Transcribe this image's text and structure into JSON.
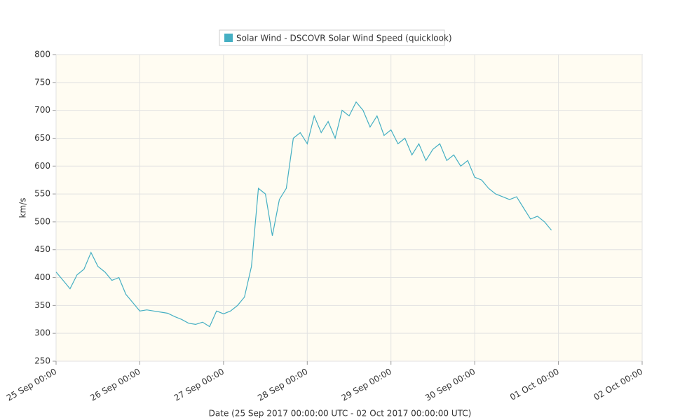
{
  "chart_data": {
    "type": "line",
    "legend_label": "Solar Wind - DSCOVR Solar Wind Speed (quicklook)",
    "xlabel": "Date (25 Sep 2017 00:00:00 UTC - 02 Oct 2017 00:00:00 UTC)",
    "ylabel": "km/s",
    "series": [
      {
        "name": "Solar Wind - DSCOVR Solar Wind Speed (quicklook)",
        "color": "#45afc3",
        "x": [
          "25 Sep 00:00",
          "25 Sep 02:00",
          "25 Sep 04:00",
          "25 Sep 06:00",
          "25 Sep 08:00",
          "25 Sep 10:00",
          "25 Sep 12:00",
          "25 Sep 14:00",
          "25 Sep 16:00",
          "25 Sep 18:00",
          "25 Sep 20:00",
          "25 Sep 22:00",
          "26 Sep 00:00",
          "26 Sep 02:00",
          "26 Sep 04:00",
          "26 Sep 06:00",
          "26 Sep 08:00",
          "26 Sep 10:00",
          "26 Sep 12:00",
          "26 Sep 14:00",
          "26 Sep 16:00",
          "26 Sep 18:00",
          "26 Sep 20:00",
          "26 Sep 22:00",
          "27 Sep 00:00",
          "27 Sep 02:00",
          "27 Sep 04:00",
          "27 Sep 06:00",
          "27 Sep 08:00",
          "27 Sep 10:00",
          "27 Sep 12:00",
          "27 Sep 14:00",
          "27 Sep 16:00",
          "27 Sep 18:00",
          "27 Sep 20:00",
          "27 Sep 22:00",
          "28 Sep 00:00",
          "28 Sep 02:00",
          "28 Sep 04:00",
          "28 Sep 06:00",
          "28 Sep 08:00",
          "28 Sep 10:00",
          "28 Sep 12:00",
          "28 Sep 14:00",
          "28 Sep 16:00",
          "28 Sep 18:00",
          "28 Sep 20:00",
          "28 Sep 22:00",
          "29 Sep 00:00",
          "29 Sep 02:00",
          "29 Sep 04:00",
          "29 Sep 06:00",
          "29 Sep 08:00",
          "29 Sep 10:00",
          "29 Sep 12:00",
          "29 Sep 14:00",
          "29 Sep 16:00",
          "29 Sep 18:00",
          "29 Sep 20:00",
          "29 Sep 22:00",
          "30 Sep 00:00",
          "30 Sep 02:00",
          "30 Sep 04:00",
          "30 Sep 06:00",
          "30 Sep 08:00",
          "30 Sep 10:00",
          "30 Sep 12:00",
          "30 Sep 14:00",
          "30 Sep 16:00",
          "30 Sep 18:00",
          "30 Sep 20:00",
          "30 Sep 22:00"
        ],
        "values": [
          410,
          395,
          380,
          405,
          415,
          445,
          420,
          410,
          395,
          400,
          370,
          355,
          340,
          342,
          340,
          338,
          336,
          330,
          325,
          318,
          316,
          320,
          312,
          340,
          335,
          340,
          350,
          365,
          420,
          560,
          550,
          475,
          540,
          560,
          650,
          660,
          640,
          690,
          660,
          680,
          650,
          700,
          690,
          715,
          700,
          670,
          690,
          655,
          665,
          640,
          650,
          620,
          640,
          610,
          630,
          640,
          610,
          620,
          600,
          610,
          580,
          575,
          560,
          550,
          545,
          540,
          545,
          525,
          505,
          510,
          500,
          485
        ]
      }
    ],
    "xlim": [
      "25 Sep 00:00",
      "02 Oct 00:00"
    ],
    "xticks": [
      "25 Sep 00:00",
      "26 Sep 00:00",
      "27 Sep 00:00",
      "28 Sep 00:00",
      "29 Sep 00:00",
      "30 Sep 00:00",
      "01 Oct 00:00",
      "02 Oct 00:00"
    ],
    "ylim": [
      250,
      800
    ],
    "yticks": [
      250,
      300,
      350,
      400,
      450,
      500,
      550,
      600,
      650,
      700,
      750,
      800
    ],
    "grid": true
  }
}
